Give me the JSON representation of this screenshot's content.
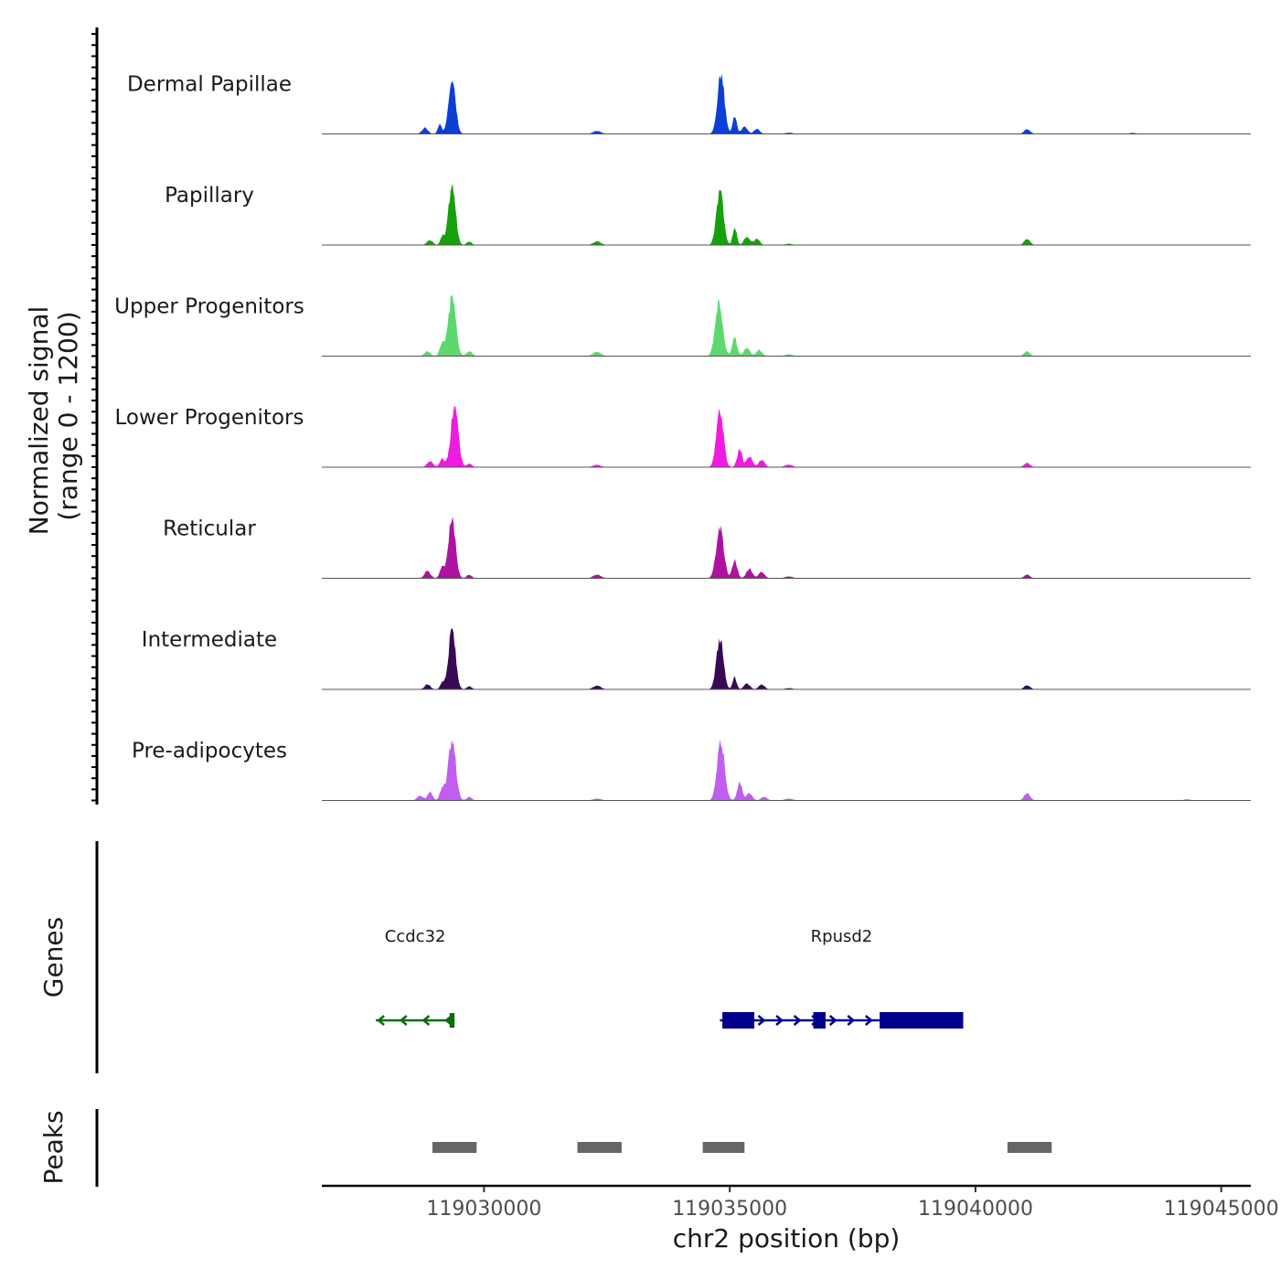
{
  "chart_data": {
    "type": "area",
    "title": "",
    "ylabel_line1": "Normalized signal",
    "ylabel_line2": "(range 0 - 1200)",
    "xlabel": "chr2 position (bp)",
    "xlim": [
      119026700,
      119045600
    ],
    "ylim": [
      0,
      1200
    ],
    "x_ticks": [
      119030000,
      119035000,
      119040000,
      119045000
    ],
    "x_tick_labels": [
      "119030000",
      "119035000",
      "119040000",
      "119045000"
    ],
    "peak_positions": [
      119029350,
      119032300,
      119034780,
      119041050
    ],
    "tracks": [
      {
        "name": "Dermal Papillae",
        "color": "#0c3fd6",
        "peaks": [
          [
            119029350,
            0.97,
            70
          ],
          [
            119028800,
            0.1,
            60
          ],
          [
            119029100,
            0.15,
            40
          ],
          [
            119032300,
            0.05,
            80
          ],
          [
            119034820,
            1.0,
            70
          ],
          [
            119035100,
            0.3,
            40
          ],
          [
            119035300,
            0.12,
            60
          ],
          [
            119035550,
            0.08,
            60
          ],
          [
            119036200,
            0.02,
            80
          ],
          [
            119041050,
            0.08,
            60
          ],
          [
            119043200,
            0.02,
            60
          ]
        ]
      },
      {
        "name": "Papillary",
        "color": "#16a00c",
        "peaks": [
          [
            119029350,
            1.0,
            70
          ],
          [
            119028900,
            0.08,
            60
          ],
          [
            119029150,
            0.14,
            40
          ],
          [
            119029700,
            0.06,
            50
          ],
          [
            119032300,
            0.06,
            80
          ],
          [
            119034800,
            0.9,
            70
          ],
          [
            119035100,
            0.3,
            40
          ],
          [
            119035350,
            0.14,
            60
          ],
          [
            119035550,
            0.1,
            60
          ],
          [
            119036200,
            0.02,
            80
          ],
          [
            119041050,
            0.1,
            60
          ]
        ]
      },
      {
        "name": "Upper Progenitors",
        "color": "#5cd86e",
        "peaks": [
          [
            119029350,
            1.0,
            75
          ],
          [
            119028850,
            0.08,
            60
          ],
          [
            119029150,
            0.2,
            50
          ],
          [
            119029700,
            0.08,
            60
          ],
          [
            119032300,
            0.07,
            80
          ],
          [
            119034780,
            0.88,
            75
          ],
          [
            119035100,
            0.3,
            50
          ],
          [
            119035350,
            0.14,
            60
          ],
          [
            119035600,
            0.1,
            60
          ],
          [
            119036200,
            0.03,
            80
          ],
          [
            119041050,
            0.08,
            60
          ]
        ]
      },
      {
        "name": "Lower Progenitors",
        "color": "#ee1ce0",
        "peaks": [
          [
            119029400,
            1.0,
            75
          ],
          [
            119028900,
            0.1,
            60
          ],
          [
            119029150,
            0.14,
            50
          ],
          [
            119029700,
            0.06,
            50
          ],
          [
            119032300,
            0.04,
            80
          ],
          [
            119034800,
            0.96,
            70
          ],
          [
            119035200,
            0.3,
            50
          ],
          [
            119035400,
            0.18,
            60
          ],
          [
            119035650,
            0.12,
            60
          ],
          [
            119036200,
            0.04,
            80
          ],
          [
            119041050,
            0.07,
            60
          ]
        ]
      },
      {
        "name": "Reticular",
        "color": "#ad13a0",
        "peaks": [
          [
            119029350,
            1.0,
            70
          ],
          [
            119028850,
            0.12,
            60
          ],
          [
            119029150,
            0.18,
            50
          ],
          [
            119029700,
            0.06,
            50
          ],
          [
            119032300,
            0.06,
            80
          ],
          [
            119034800,
            0.84,
            75
          ],
          [
            119035100,
            0.3,
            50
          ],
          [
            119035400,
            0.16,
            60
          ],
          [
            119035650,
            0.1,
            60
          ],
          [
            119036200,
            0.03,
            80
          ],
          [
            119041050,
            0.06,
            60
          ]
        ]
      },
      {
        "name": "Intermediate",
        "color": "#380a56",
        "peaks": [
          [
            119029350,
            1.0,
            70
          ],
          [
            119028850,
            0.08,
            60
          ],
          [
            119029150,
            0.12,
            40
          ],
          [
            119029700,
            0.05,
            50
          ],
          [
            119032300,
            0.06,
            80
          ],
          [
            119034800,
            0.84,
            70
          ],
          [
            119035100,
            0.2,
            40
          ],
          [
            119035350,
            0.1,
            60
          ],
          [
            119035650,
            0.08,
            60
          ],
          [
            119036200,
            0.02,
            80
          ],
          [
            119041050,
            0.07,
            60
          ]
        ]
      },
      {
        "name": "Pre-adipocytes",
        "color": "#c05ef0",
        "peaks": [
          [
            119029350,
            1.0,
            75
          ],
          [
            119028700,
            0.08,
            60
          ],
          [
            119028900,
            0.14,
            50
          ],
          [
            119029150,
            0.2,
            50
          ],
          [
            119029700,
            0.06,
            50
          ],
          [
            119032300,
            0.03,
            80
          ],
          [
            119034820,
            0.98,
            75
          ],
          [
            119035200,
            0.3,
            50
          ],
          [
            119035400,
            0.12,
            60
          ],
          [
            119035700,
            0.06,
            60
          ],
          [
            119036200,
            0.03,
            80
          ],
          [
            119041050,
            0.12,
            60
          ],
          [
            119044300,
            0.02,
            60
          ]
        ]
      }
    ],
    "genes": [
      {
        "name": "Ccdc32",
        "strand": "-",
        "color": "#0a6e0a",
        "start": 119027800,
        "end": 119029400,
        "exons": [
          [
            119029300,
            119029400
          ]
        ]
      },
      {
        "name": "Rpusd2",
        "strand": "+",
        "color": "#00008b",
        "start": 119034800,
        "end": 119039750,
        "exons": [
          [
            119034850,
            119035500
          ],
          [
            119036700,
            119036950
          ],
          [
            119038050,
            119039750
          ]
        ]
      }
    ],
    "peaks_track": [
      [
        119028950,
        119029850
      ],
      [
        119031900,
        119032800
      ],
      [
        119034450,
        119035300
      ],
      [
        119040650,
        119041550
      ]
    ],
    "panel_labels": {
      "genes": "Genes",
      "peaks": "Peaks"
    }
  }
}
